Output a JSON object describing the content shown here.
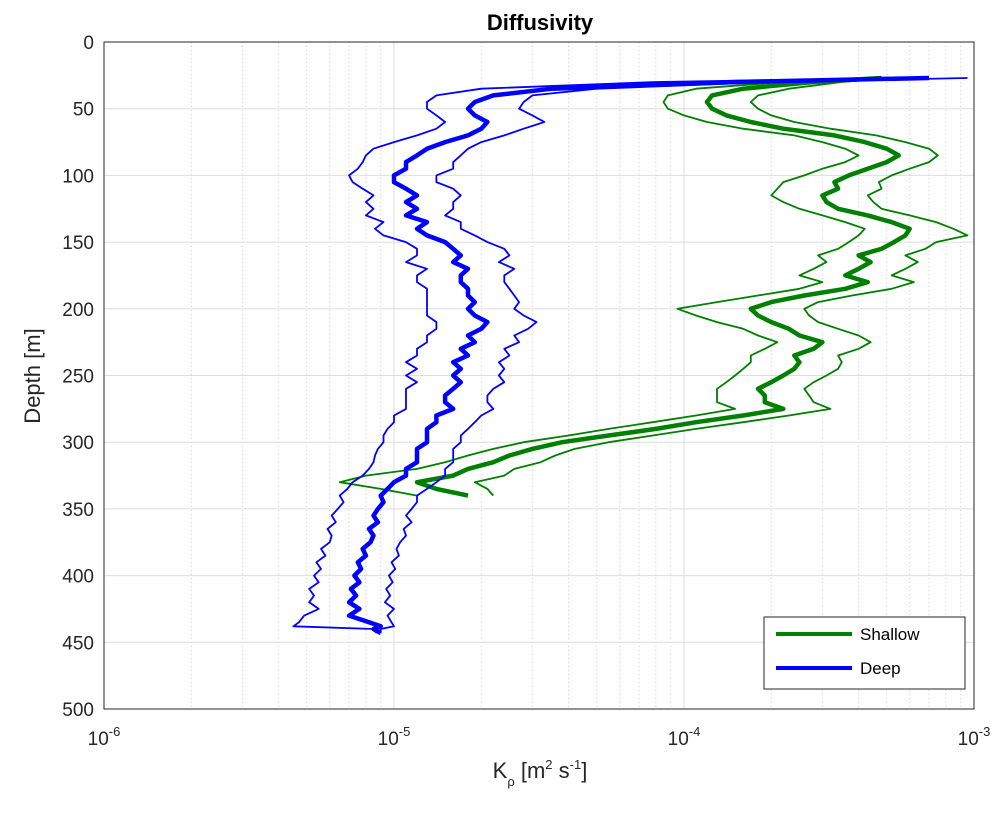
{
  "chart_data": {
    "type": "line",
    "title": "Diffusivity",
    "xlabel": {
      "base": "K",
      "sub": "ρ",
      "rest": " [m",
      "sup1": "2",
      "mid": " s",
      "sup2": "-1",
      "end": "]"
    },
    "ylabel": "Depth [m]",
    "xscale": "log",
    "xlim": [
      1e-06,
      0.001
    ],
    "ylim": [
      0,
      500
    ],
    "y_reversed": true,
    "grid": true,
    "minor_grid_x": true,
    "legend_position": "bottom-right",
    "yticks": [
      0,
      50,
      100,
      150,
      200,
      250,
      300,
      350,
      400,
      450,
      500
    ],
    "xticks": [
      {
        "base": "10",
        "exp": "-6",
        "value": 1e-06
      },
      {
        "base": "10",
        "exp": "-5",
        "value": 1e-05
      },
      {
        "base": "10",
        "exp": "-4",
        "value": 0.0001
      },
      {
        "base": "10",
        "exp": "-3",
        "value": 0.001
      }
    ],
    "series": [
      {
        "name": "Shallow",
        "color": "#008000",
        "depth": [
          27,
          30,
          35,
          40,
          45,
          50,
          55,
          60,
          65,
          70,
          75,
          80,
          85,
          90,
          95,
          100,
          105,
          110,
          115,
          120,
          125,
          130,
          135,
          140,
          145,
          150,
          155,
          160,
          165,
          170,
          175,
          180,
          185,
          190,
          195,
          200,
          205,
          210,
          215,
          220,
          225,
          230,
          235,
          240,
          245,
          250,
          255,
          260,
          265,
          270,
          275,
          280,
          285,
          290,
          295,
          300,
          305,
          310,
          315,
          320,
          325,
          330,
          335,
          340
        ],
        "mean": [
          0.00048,
          0.00028,
          0.00016,
          0.000125,
          0.00012,
          0.000125,
          0.00014,
          0.00017,
          0.00022,
          0.00033,
          0.00042,
          0.0005,
          0.00055,
          0.0005,
          0.00043,
          0.00037,
          0.00033,
          0.00034,
          0.0003,
          0.00031,
          0.00034,
          0.00043,
          0.00052,
          0.0006,
          0.00058,
          0.00053,
          0.00048,
          0.0004,
          0.00044,
          0.0004,
          0.00036,
          0.00043,
          0.00036,
          0.00026,
          0.0002,
          0.00017,
          0.00018,
          0.0002,
          0.00023,
          0.00025,
          0.0003,
          0.00028,
          0.00024,
          0.00025,
          0.00024,
          0.00022,
          0.0002,
          0.00018,
          0.00019,
          0.00019,
          0.00022,
          0.00016,
          0.00011,
          8e-05,
          5.5e-05,
          3.8e-05,
          3e-05,
          2.5e-05,
          2.2e-05,
          1.8e-05,
          1.6e-05,
          1.2e-05,
          1.4e-05,
          1.8e-05
        ],
        "low": [
          0.00045,
          0.00022,
          0.00011,
          8.8e-05,
          8.5e-05,
          8.8e-05,
          0.0001,
          0.00012,
          0.00016,
          0.00024,
          0.0003,
          0.00036,
          0.0004,
          0.00036,
          0.0003,
          0.00026,
          0.00022,
          0.00021,
          0.0002,
          0.00022,
          0.00025,
          0.0003,
          0.00036,
          0.00042,
          0.0004,
          0.00037,
          0.00034,
          0.00029,
          0.00031,
          0.00028,
          0.00025,
          0.0003,
          0.00025,
          0.00018,
          0.00013,
          9.5e-05,
          0.00011,
          0.00013,
          0.00016,
          0.00018,
          0.00021,
          0.00019,
          0.00017,
          0.00017,
          0.00016,
          0.00015,
          0.00014,
          0.00013,
          0.00013,
          0.00013,
          0.00015,
          0.00011,
          7.8e-05,
          5.5e-05,
          4e-05,
          2.8e-05,
          2.2e-05,
          1.8e-05,
          1.5e-05,
          1.2e-05,
          8e-06,
          6.5e-06,
          9e-06,
          1.2e-05
        ],
        "high": [
          0.00052,
          0.00035,
          0.00023,
          0.00018,
          0.00017,
          0.00018,
          0.0002,
          0.00024,
          0.00032,
          0.00046,
          0.00058,
          0.0007,
          0.00075,
          0.0007,
          0.0006,
          0.00052,
          0.00047,
          0.00048,
          0.00043,
          0.00045,
          0.00048,
          0.0006,
          0.00074,
          0.00085,
          0.00095,
          0.00074,
          0.00068,
          0.00058,
          0.00064,
          0.00058,
          0.00052,
          0.00062,
          0.00052,
          0.00038,
          0.00029,
          0.00026,
          0.00027,
          0.00029,
          0.00034,
          0.0004,
          0.00044,
          0.0004,
          0.00034,
          0.00035,
          0.00034,
          0.00031,
          0.00028,
          0.00026,
          0.00027,
          0.00028,
          0.00032,
          0.00023,
          0.00016,
          0.00011,
          7.8e-05,
          5.5e-05,
          4.2e-05,
          3.6e-05,
          3.2e-05,
          2.6e-05,
          2.4e-05,
          1.9e-05,
          2.1e-05,
          2.2e-05
        ]
      },
      {
        "name": "Deep",
        "color": "#0000ff",
        "depth": [
          27,
          30,
          35,
          40,
          45,
          50,
          55,
          60,
          65,
          70,
          75,
          80,
          85,
          90,
          95,
          100,
          105,
          110,
          115,
          120,
          125,
          130,
          135,
          140,
          145,
          150,
          155,
          160,
          165,
          170,
          175,
          180,
          185,
          190,
          195,
          200,
          205,
          210,
          215,
          220,
          225,
          230,
          235,
          240,
          245,
          250,
          255,
          260,
          265,
          270,
          275,
          280,
          285,
          290,
          295,
          300,
          305,
          310,
          315,
          320,
          325,
          330,
          335,
          340,
          345,
          350,
          355,
          360,
          365,
          370,
          375,
          380,
          385,
          390,
          395,
          400,
          405,
          410,
          415,
          420,
          425,
          430,
          435,
          438,
          440,
          443
        ],
        "mean": [
          0.0007,
          0.00015,
          3.5e-05,
          2.2e-05,
          1.9e-05,
          1.8e-05,
          1.9e-05,
          2.1e-05,
          2e-05,
          1.8e-05,
          1.5e-05,
          1.3e-05,
          1.2e-05,
          1.1e-05,
          1.1e-05,
          1e-05,
          1e-05,
          1.1e-05,
          1.2e-05,
          1.1e-05,
          1.2e-05,
          1.1e-05,
          1.3e-05,
          1.2e-05,
          1.3e-05,
          1.5e-05,
          1.6e-05,
          1.7e-05,
          1.6e-05,
          1.8e-05,
          1.7e-05,
          1.7e-05,
          1.8e-05,
          1.8e-05,
          1.9e-05,
          1.8e-05,
          1.9e-05,
          2.1e-05,
          2e-05,
          1.8e-05,
          1.9e-05,
          1.7e-05,
          1.8e-05,
          1.6e-05,
          1.7e-05,
          1.6e-05,
          1.7e-05,
          1.6e-05,
          1.5e-05,
          1.5e-05,
          1.6e-05,
          1.4e-05,
          1.4e-05,
          1.3e-05,
          1.3e-05,
          1.3e-05,
          1.2e-05,
          1.2e-05,
          1.2e-05,
          1.1e-05,
          1.1e-05,
          1e-05,
          9.5e-06,
          9e-06,
          9.2e-06,
          8.8e-06,
          8.5e-06,
          8.8e-06,
          8.2e-06,
          8.5e-06,
          8.3e-06,
          7.8e-06,
          8e-06,
          7.5e-06,
          7.7e-06,
          7.3e-06,
          7.6e-06,
          7.1e-06,
          7.4e-06,
          7e-06,
          7.6e-06,
          7e-06,
          8.2e-06,
          9e-06,
          8.5e-06,
          9e-06
        ],
        "low": [
          0.0006,
          8e-05,
          2e-05,
          1.4e-05,
          1.3e-05,
          1.3e-05,
          1.4e-05,
          1.5e-05,
          1.4e-05,
          1.2e-05,
          1e-05,
          8.5e-06,
          8e-06,
          7.8e-06,
          7.5e-06,
          7e-06,
          7.2e-06,
          7.8e-06,
          8.5e-06,
          8e-06,
          8.5e-06,
          8e-06,
          9.2e-06,
          8.6e-06,
          9.2e-06,
          1.1e-05,
          1.2e-05,
          1.2e-05,
          1.1e-05,
          1.3e-05,
          1.2e-05,
          1.2e-05,
          1.3e-05,
          1.3e-05,
          1.3e-05,
          1.3e-05,
          1.3e-05,
          1.4e-05,
          1.4e-05,
          1.3e-05,
          1.3e-05,
          1.2e-05,
          1.2e-05,
          1.1e-05,
          1.2e-05,
          1.1e-05,
          1.2e-05,
          1.1e-05,
          1.1e-05,
          1.1e-05,
          1.1e-05,
          1e-05,
          1e-05,
          9.5e-06,
          9.2e-06,
          9.2e-06,
          8.8e-06,
          8.6e-06,
          8.5e-06,
          8.2e-06,
          7.8e-06,
          7.2e-06,
          6.9e-06,
          6.5e-06,
          6.7e-06,
          6.4e-06,
          6.1e-06,
          6.3e-06,
          5.9e-06,
          6.1e-06,
          6e-06,
          5.6e-06,
          5.8e-06,
          5.4e-06,
          5.6e-06,
          5.3e-06,
          5.5e-06,
          5.1e-06,
          5.3e-06,
          5.1e-06,
          5.5e-06,
          4.9e-06,
          4.7e-06,
          4.5e-06,
          8.5e-06,
          8.7e-06
        ],
        "high": [
          0.00095,
          0.0002,
          5e-05,
          3e-05,
          2.8e-05,
          2.7e-05,
          3e-05,
          3.3e-05,
          2.8e-05,
          2.4e-05,
          2e-05,
          1.8e-05,
          1.7e-05,
          1.6e-05,
          1.6e-05,
          1.4e-05,
          1.4e-05,
          1.6e-05,
          1.7e-05,
          1.6e-05,
          1.6e-05,
          1.5e-05,
          1.7e-05,
          1.7e-05,
          1.9e-05,
          2.1e-05,
          2.4e-05,
          2.5e-05,
          2.3e-05,
          2.6e-05,
          2.4e-05,
          2.4e-05,
          2.5e-05,
          2.6e-05,
          2.7e-05,
          2.6e-05,
          2.8e-05,
          3.1e-05,
          2.9e-05,
          2.6e-05,
          2.7e-05,
          2.4e-05,
          2.5e-05,
          2.3e-05,
          2.4e-05,
          2.3e-05,
          2.4e-05,
          2.2e-05,
          2.1e-05,
          2.1e-05,
          2.2e-05,
          2e-05,
          1.9e-05,
          1.8e-05,
          1.7e-05,
          1.7e-05,
          1.6e-05,
          1.6e-05,
          1.6e-05,
          1.5e-05,
          1.5e-05,
          1.4e-05,
          1.3e-05,
          1.2e-05,
          1.2e-05,
          1.15e-05,
          1.1e-05,
          1.15e-05,
          1.08e-05,
          1.1e-05,
          1.05e-05,
          1.02e-05,
          1.04e-05,
          9.8e-06,
          1.01e-05,
          9.6e-06,
          9.9e-06,
          9.4e-06,
          9.7e-06,
          9.3e-06,
          1e-05,
          9.5e-06,
          9.8e-06,
          1e-05,
          9e-06,
          9e-06
        ]
      }
    ]
  }
}
